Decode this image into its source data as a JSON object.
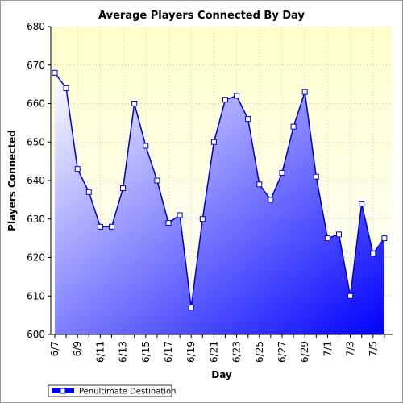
{
  "chart_data": {
    "type": "area",
    "title": "Average Players Connected By Day",
    "xlabel": "Day",
    "ylabel": "Players Connected",
    "ylim": [
      600,
      680
    ],
    "yticks": [
      600,
      610,
      620,
      630,
      640,
      650,
      660,
      670,
      680
    ],
    "grid": true,
    "legend_position": "bottom-left",
    "x": [
      "6/7",
      "6/8",
      "6/9",
      "6/10",
      "6/11",
      "6/12",
      "6/13",
      "6/14",
      "6/15",
      "6/16",
      "6/17",
      "6/18",
      "6/19",
      "6/20",
      "6/21",
      "6/22",
      "6/23",
      "6/24",
      "6/25",
      "6/26",
      "6/27",
      "6/28",
      "6/29",
      "6/30",
      "7/1",
      "7/2",
      "7/3",
      "7/4",
      "7/5",
      "7/6"
    ],
    "xtick_labels": [
      "6/7",
      "6/9",
      "6/11",
      "6/13",
      "6/15",
      "6/17",
      "6/19",
      "6/21",
      "6/23",
      "6/25",
      "6/27",
      "6/29",
      "7/1",
      "7/3",
      "7/5"
    ],
    "series": [
      {
        "name": "Penultimate Destination",
        "values": [
          668,
          664,
          643,
          637,
          628,
          628,
          638,
          660,
          649,
          640,
          629,
          631,
          607,
          630,
          650,
          661,
          662,
          656,
          639,
          635,
          642,
          654,
          663,
          641,
          625,
          626,
          610,
          634,
          621,
          625
        ]
      }
    ],
    "colors": {
      "line": "#0000cc",
      "fill_light": "#ffffff",
      "fill_dark": "#0000ff",
      "plot_bg_top": "#ffffcc",
      "plot_bg_bottom": "#ffffff",
      "grid": "#c8c8c8"
    }
  }
}
